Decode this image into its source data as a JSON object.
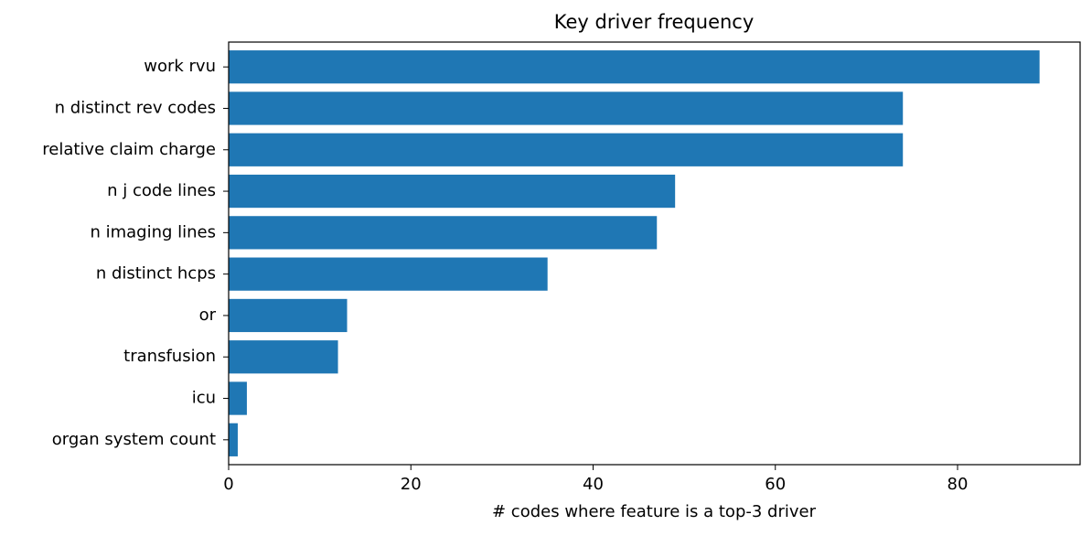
{
  "chart_data": {
    "type": "barh",
    "title": "Key driver frequency",
    "x_label": "# codes where feature is a top-3 driver",
    "categories": [
      "work rvu",
      "n distinct rev codes",
      "relative claim charge",
      "n j code lines",
      "n imaging lines",
      "n distinct hcps",
      "or",
      "transfusion",
      "icu",
      "organ system count"
    ],
    "values": [
      89,
      74,
      74,
      49,
      47,
      35,
      13,
      12,
      2,
      1
    ],
    "color": "#1f77b4",
    "xlim": [
      0,
      93.45
    ],
    "xticks": [
      0,
      20,
      40,
      60,
      80
    ],
    "grid": false
  }
}
